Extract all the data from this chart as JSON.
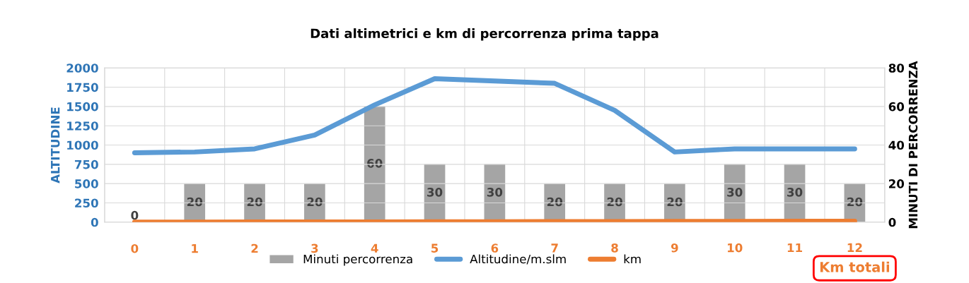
{
  "chart_data": {
    "type": "bar",
    "title": "Dati altimetrici e km di percorrenza prima tappa",
    "categories": [
      null,
      null,
      null,
      null,
      null,
      null,
      null,
      null,
      null,
      null,
      null,
      null,
      null
    ],
    "series": [
      {
        "name": "Minuti percorrenza",
        "axis": "y2",
        "color": "#a5a5a5",
        "values": [
          0,
          20,
          20,
          20,
          60,
          30,
          30,
          20,
          20,
          20,
          30,
          30,
          20
        ],
        "value_labels": [
          "0",
          "20",
          "20",
          "20",
          "60",
          "30",
          "30",
          "20",
          "20",
          "20",
          "30",
          "30",
          "20"
        ]
      },
      {
        "name": "Altitudine/m.slm",
        "type": "line",
        "color": "#5b9bd5",
        "values": [
          900,
          910,
          950,
          1130,
          1520,
          1860,
          1830,
          1800,
          1450,
          910,
          950,
          950,
          950
        ]
      },
      {
        "name": "km",
        "type": "line",
        "color": "#ed7d31",
        "values": [
          0,
          1,
          2,
          3,
          4,
          5,
          6,
          7,
          8,
          9,
          10,
          11,
          12
        ],
        "value_labels": [
          "0",
          "1",
          "2",
          "3",
          "4",
          "5",
          "6",
          "7",
          "8",
          "9",
          "10",
          "11",
          "12"
        ]
      }
    ],
    "ylabel": "ALTITUDINE",
    "y2label": "MINUTI DI PERCORRENZA",
    "ylim": [
      0,
      2000
    ],
    "yticks": [
      0,
      250,
      500,
      750,
      1000,
      1250,
      1500,
      1750,
      2000
    ],
    "y2lim": [
      0,
      80
    ],
    "y2ticks": [
      0,
      20,
      40,
      60,
      80
    ],
    "annotations": [
      "Km totali"
    ],
    "grid": true,
    "legend": "bottom",
    "marker": "none"
  }
}
